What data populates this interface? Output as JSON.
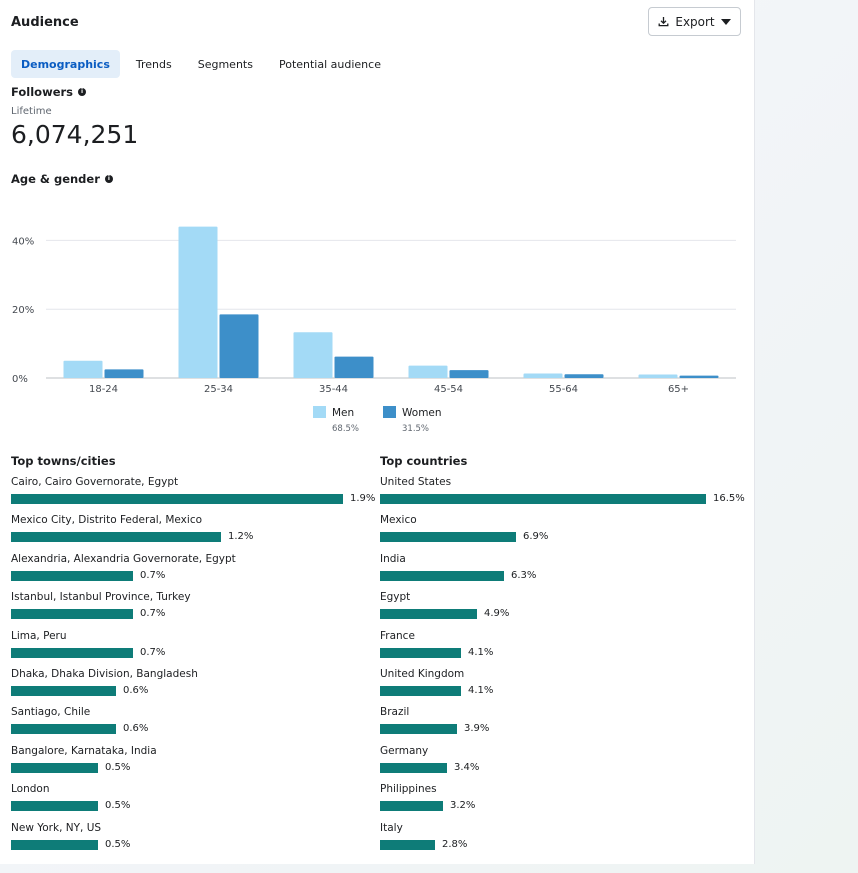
{
  "header": {
    "title": "Audience",
    "export_label": "Export"
  },
  "tabs": [
    {
      "label": "Demographics",
      "active": true
    },
    {
      "label": "Trends",
      "active": false
    },
    {
      "label": "Segments",
      "active": false
    },
    {
      "label": "Potential audience",
      "active": false
    }
  ],
  "followers": {
    "label": "Followers",
    "period": "Lifetime",
    "value": "6,074,251"
  },
  "age_gender": {
    "label": "Age & gender"
  },
  "chart_data": {
    "type": "bar",
    "categories": [
      "18-24",
      "25-34",
      "35-44",
      "45-54",
      "55-64",
      "65+"
    ],
    "series": [
      {
        "name": "Men",
        "share": "68.5%",
        "color": "#a3daf6",
        "values": [
          5,
          44,
          13.3,
          3.6,
          1.3,
          1
        ]
      },
      {
        "name": "Women",
        "share": "31.5%",
        "color": "#3d8fc9",
        "values": [
          2.5,
          18.5,
          6.2,
          2.3,
          1.1,
          0.7
        ]
      }
    ],
    "yticks": [
      "0%",
      "20%",
      "40%"
    ],
    "ylim": [
      0,
      50
    ],
    "grid": true,
    "legend": "bottom-center"
  },
  "top_cities": {
    "title": "Top towns/cities",
    "bar_color": "#0e7c78",
    "max": 1.9,
    "items": [
      {
        "name": "Cairo, Cairo Governorate, Egypt",
        "value": 1.9,
        "label": "1.9%"
      },
      {
        "name": "Mexico City, Distrito Federal, Mexico",
        "value": 1.2,
        "label": "1.2%"
      },
      {
        "name": "Alexandria, Alexandria Governorate, Egypt",
        "value": 0.7,
        "label": "0.7%"
      },
      {
        "name": "Istanbul, Istanbul Province, Turkey",
        "value": 0.7,
        "label": "0.7%"
      },
      {
        "name": "Lima, Peru",
        "value": 0.7,
        "label": "0.7%"
      },
      {
        "name": "Dhaka, Dhaka Division, Bangladesh",
        "value": 0.6,
        "label": "0.6%"
      },
      {
        "name": "Santiago, Chile",
        "value": 0.6,
        "label": "0.6%"
      },
      {
        "name": "Bangalore, Karnataka, India",
        "value": 0.5,
        "label": "0.5%"
      },
      {
        "name": "London",
        "value": 0.5,
        "label": "0.5%"
      },
      {
        "name": "New York, NY, US",
        "value": 0.5,
        "label": "0.5%"
      }
    ]
  },
  "top_countries": {
    "title": "Top countries",
    "bar_color": "#0e7c78",
    "max": 16.5,
    "items": [
      {
        "name": "United States",
        "value": 16.5,
        "label": "16.5%"
      },
      {
        "name": "Mexico",
        "value": 6.9,
        "label": "6.9%"
      },
      {
        "name": "India",
        "value": 6.3,
        "label": "6.3%"
      },
      {
        "name": "Egypt",
        "value": 4.9,
        "label": "4.9%"
      },
      {
        "name": "France",
        "value": 4.1,
        "label": "4.1%"
      },
      {
        "name": "United Kingdom",
        "value": 4.1,
        "label": "4.1%"
      },
      {
        "name": "Brazil",
        "value": 3.9,
        "label": "3.9%"
      },
      {
        "name": "Germany",
        "value": 3.4,
        "label": "3.4%"
      },
      {
        "name": "Philippines",
        "value": 3.2,
        "label": "3.2%"
      },
      {
        "name": "Italy",
        "value": 2.8,
        "label": "2.8%"
      }
    ]
  }
}
